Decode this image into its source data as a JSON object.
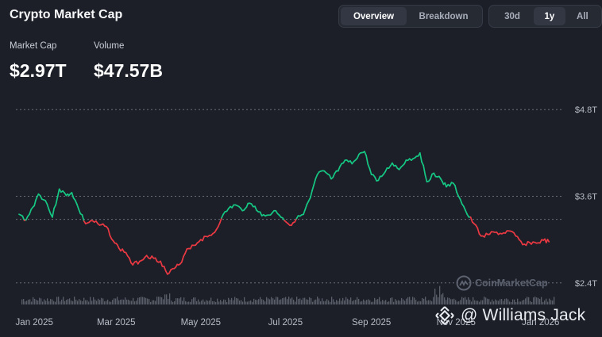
{
  "header": {
    "title": "Crypto Market Cap"
  },
  "view_tabs": [
    {
      "label": "Overview",
      "active": true
    },
    {
      "label": "Breakdown",
      "active": false
    }
  ],
  "range_tabs": [
    {
      "label": "30d",
      "active": false
    },
    {
      "label": "1y",
      "active": true
    },
    {
      "label": "All",
      "active": false
    }
  ],
  "stats": {
    "market_cap_label": "Market Cap",
    "market_cap_value": "$2.97T",
    "volume_label": "Volume",
    "volume_value": "$47.57B"
  },
  "watermark": {
    "source": "CoinMarketCap",
    "credit": "@ Williams Jack"
  },
  "colors": {
    "up": "#16c784",
    "down": "#ea3943",
    "grid": "#8b909b",
    "volume": "#5a5f6a"
  },
  "chart_data": {
    "type": "line",
    "title": "",
    "ylabel": "",
    "y_ticks": [
      "$4.8T",
      "$3.6T",
      "$2.4T"
    ],
    "y_tick_values": [
      4.8,
      3.6,
      2.4
    ],
    "ylim": [
      2.2,
      5.0
    ],
    "baseline": 3.28,
    "x_tick_labels": [
      "Jan 2025",
      "Mar 2025",
      "May 2025",
      "Jul 2025",
      "Sep 2025",
      "Nov 2025",
      "Jan 2026"
    ],
    "x_tick_dates": [
      "2025-01-01",
      "2025-03-01",
      "2025-05-01",
      "2025-07-01",
      "2025-09-01",
      "2025-11-01",
      "2026-01-01"
    ],
    "x_range": [
      "2024-12-21",
      "2026-01-12"
    ],
    "grid": true,
    "series": [
      {
        "x": [
          "2024-12-21",
          "2024-12-26",
          "2024-12-31",
          "2025-01-04",
          "2025-01-09",
          "2025-01-14",
          "2025-01-19",
          "2025-01-24",
          "2025-01-28",
          "2025-02-02",
          "2025-02-07",
          "2025-02-12",
          "2025-02-17",
          "2025-02-22",
          "2025-02-27",
          "2025-03-03",
          "2025-03-08",
          "2025-03-13",
          "2025-03-18",
          "2025-03-23",
          "2025-03-28",
          "2025-04-02",
          "2025-04-07",
          "2025-04-12",
          "2025-04-16",
          "2025-04-21",
          "2025-04-26",
          "2025-05-01",
          "2025-05-06",
          "2025-05-11",
          "2025-05-16",
          "2025-05-21",
          "2025-05-26",
          "2025-05-31",
          "2025-06-04",
          "2025-06-09",
          "2025-06-14",
          "2025-06-19",
          "2025-06-24",
          "2025-06-29",
          "2025-07-04",
          "2025-07-09",
          "2025-07-14",
          "2025-07-19",
          "2025-07-24",
          "2025-07-29",
          "2025-08-03",
          "2025-08-08",
          "2025-08-13",
          "2025-08-18",
          "2025-08-23",
          "2025-08-27",
          "2025-09-01",
          "2025-09-06",
          "2025-09-11",
          "2025-09-16",
          "2025-09-21",
          "2025-09-26",
          "2025-10-01",
          "2025-10-06",
          "2025-10-11",
          "2025-10-16",
          "2025-10-21",
          "2025-10-25",
          "2025-10-30",
          "2025-11-04",
          "2025-11-09",
          "2025-11-14",
          "2025-11-19",
          "2025-11-24",
          "2025-11-29",
          "2025-12-04",
          "2025-12-09",
          "2025-12-14",
          "2025-12-19",
          "2025-12-24",
          "2025-12-29",
          "2026-01-03",
          "2026-01-07"
        ],
        "y": [
          3.35,
          3.27,
          3.45,
          3.63,
          3.54,
          3.31,
          3.7,
          3.61,
          3.65,
          3.42,
          3.22,
          3.26,
          3.2,
          3.18,
          2.98,
          2.88,
          2.82,
          2.65,
          2.7,
          2.78,
          2.74,
          2.7,
          2.52,
          2.6,
          2.66,
          2.87,
          2.92,
          3.0,
          3.04,
          3.1,
          3.3,
          3.43,
          3.48,
          3.4,
          3.5,
          3.46,
          3.33,
          3.34,
          3.4,
          3.3,
          3.2,
          3.29,
          3.35,
          3.58,
          3.9,
          3.95,
          3.84,
          3.95,
          4.1,
          4.05,
          4.18,
          4.22,
          3.9,
          3.82,
          3.94,
          4.06,
          3.97,
          4.1,
          4.12,
          4.2,
          3.8,
          3.92,
          3.84,
          3.73,
          3.78,
          3.56,
          3.35,
          3.22,
          3.05,
          3.07,
          3.1,
          3.08,
          3.12,
          3.05,
          2.93,
          2.96,
          2.95,
          2.99,
          2.97
        ]
      }
    ]
  }
}
